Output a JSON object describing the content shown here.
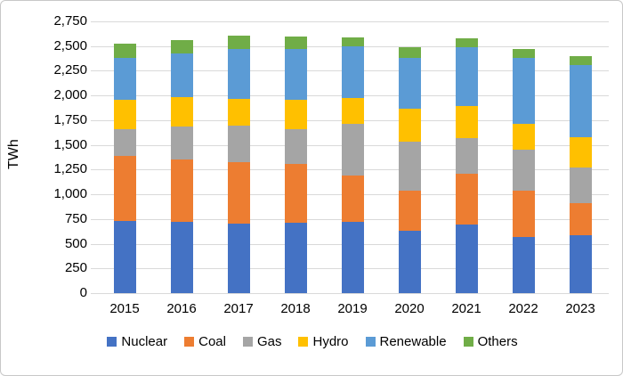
{
  "chart_data": {
    "type": "bar",
    "stacked": true,
    "title": "",
    "xlabel": "",
    "ylabel": "TWh",
    "ylim": [
      0,
      2750
    ],
    "ytick_step": 250,
    "grid": true,
    "legend_position": "bottom",
    "categories": [
      "2015",
      "2016",
      "2017",
      "2018",
      "2019",
      "2020",
      "2021",
      "2022",
      "2023"
    ],
    "series": [
      {
        "name": "Nuclear",
        "color": "#4472C4",
        "values": [
          730,
          725,
          705,
          710,
          720,
          630,
          690,
          570,
          585
        ]
      },
      {
        "name": "Coal",
        "color": "#ED7D31",
        "values": [
          655,
          625,
          625,
          595,
          470,
          410,
          520,
          470,
          330
        ]
      },
      {
        "name": "Gas",
        "color": "#A5A5A5",
        "values": [
          270,
          335,
          365,
          355,
          520,
          495,
          360,
          415,
          355
        ]
      },
      {
        "name": "Hydro",
        "color": "#FFC000",
        "values": [
          300,
          300,
          275,
          295,
          265,
          330,
          325,
          260,
          305
        ]
      },
      {
        "name": "Renewable",
        "color": "#5B9BD5",
        "values": [
          425,
          445,
          500,
          515,
          520,
          515,
          595,
          670,
          735
        ]
      },
      {
        "name": "Others",
        "color": "#70AD47",
        "values": [
          145,
          135,
          135,
          130,
          95,
          105,
          90,
          90,
          90
        ]
      }
    ]
  },
  "axis": {
    "y_tick_labels": [
      "2,750",
      "2,500",
      "2,250",
      "2,000",
      "1,750",
      "1,500",
      "1,250",
      "1,000",
      "750",
      "500",
      "250",
      "0"
    ]
  },
  "colors": {
    "gridline": "#d9d9d9",
    "border": "#c8c8c8",
    "text": "#000000"
  }
}
